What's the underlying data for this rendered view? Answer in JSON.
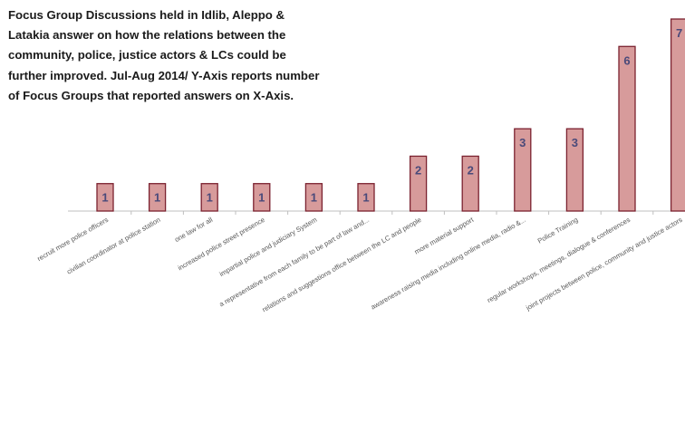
{
  "chart_data": {
    "type": "bar",
    "title": "Focus Group Discussions held in Idlib, Aleppo & Latakia answer on how the relations between the community, police, justice actors & LCs could be further improved. Jul-Aug 2014/ Y-Axis reports number of Focus Groups that reported answers on X-Axis.",
    "xlabel": "",
    "ylabel": "",
    "categories": [
      "recruit more police officers",
      "civilian coordinator at police station",
      "one law for all",
      "increased police street presence",
      "impartial police and judiciary System",
      "a representative from each family to be part of law and...",
      "relations and suggestions office between the LC and people",
      "more material support",
      "awareness raising media including online media, radio &...",
      "Police Training",
      "regular workshops, meetings, dialogue & conferences",
      "joint projects between police, community and justice actors"
    ],
    "values": [
      1,
      1,
      1,
      1,
      1,
      1,
      2,
      2,
      3,
      3,
      6,
      7
    ],
    "data_labels": [
      "1",
      "1",
      "1",
      "1",
      "1",
      "1",
      "2",
      "2",
      "3",
      "3",
      "6",
      "7"
    ],
    "ylim": [
      0,
      7
    ],
    "grid": false,
    "legend": "none",
    "colors": {
      "bar_fill": "#d79b9b",
      "bar_stroke": "#7b2230",
      "label": "#4a4a7a",
      "axis": "#bfbfbf",
      "tick_label": "#595959"
    }
  }
}
